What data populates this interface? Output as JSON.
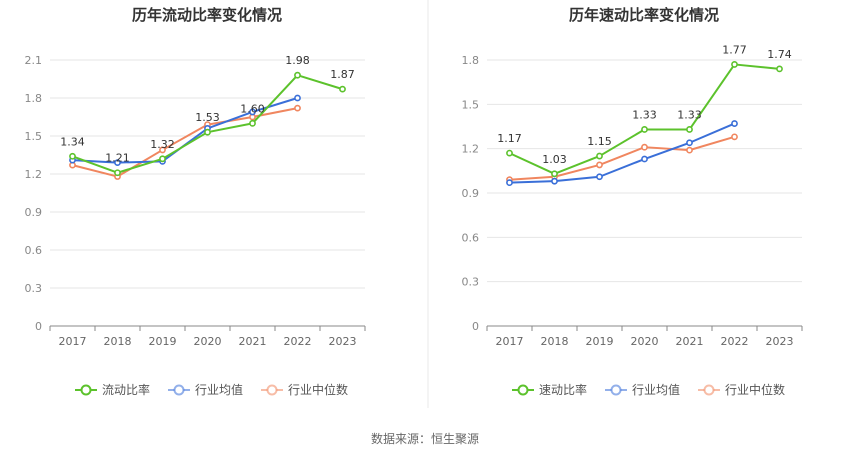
{
  "source_text": "数据来源：恒生聚源",
  "colors": {
    "primary": "#5cc22c",
    "industry_avg": "#3a6fd8",
    "industry_median": "#f0865f",
    "grid": "#e6e6e6",
    "axis": "#888888",
    "divider": "#e8e8e8"
  },
  "chart_data": [
    {
      "type": "line",
      "title": "历年流动比率变化情况",
      "x": [
        "2017",
        "2018",
        "2019",
        "2020",
        "2021",
        "2022",
        "2023"
      ],
      "yticks": [
        "0",
        "0.3",
        "0.6",
        "0.9",
        "1.2",
        "1.5",
        "1.8",
        "2.1"
      ],
      "ylim": [
        0,
        2.1
      ],
      "grid": true,
      "legend_position": "bottom-center",
      "series": [
        {
          "name": "流动比率",
          "color": "#5cc22c",
          "values": [
            1.34,
            1.21,
            1.32,
            1.53,
            1.6,
            1.98,
            1.87
          ],
          "labels": [
            "1.34",
            "1.21",
            "1.32",
            "1.53",
            "1.60",
            "1.98",
            "1.87"
          ]
        },
        {
          "name": "行业均值",
          "color": "#3a6fd8",
          "values": [
            1.31,
            1.29,
            1.3,
            1.56,
            1.69,
            1.8,
            null
          ]
        },
        {
          "name": "行业中位数",
          "color": "#f0865f",
          "values": [
            1.27,
            1.18,
            1.39,
            1.59,
            1.65,
            1.72,
            null
          ]
        }
      ]
    },
    {
      "type": "line",
      "title": "历年速动比率变化情况",
      "x": [
        "2017",
        "2018",
        "2019",
        "2020",
        "2021",
        "2022",
        "2023"
      ],
      "yticks": [
        "0",
        "0.3",
        "0.6",
        "0.9",
        "1.2",
        "1.5",
        "1.8"
      ],
      "ylim": [
        0,
        1.8
      ],
      "grid": true,
      "legend_position": "bottom-center",
      "series": [
        {
          "name": "速动比率",
          "color": "#5cc22c",
          "values": [
            1.17,
            1.03,
            1.15,
            1.33,
            1.33,
            1.77,
            1.74
          ],
          "labels": [
            "1.17",
            "1.03",
            "1.15",
            "1.33",
            "1.33",
            "1.77",
            "1.74"
          ]
        },
        {
          "name": "行业均值",
          "color": "#3a6fd8",
          "values": [
            0.97,
            0.98,
            1.01,
            1.13,
            1.24,
            1.37,
            null
          ]
        },
        {
          "name": "行业中位数",
          "color": "#f0865f",
          "values": [
            0.99,
            1.01,
            1.09,
            1.21,
            1.19,
            1.28,
            null
          ]
        }
      ]
    }
  ]
}
